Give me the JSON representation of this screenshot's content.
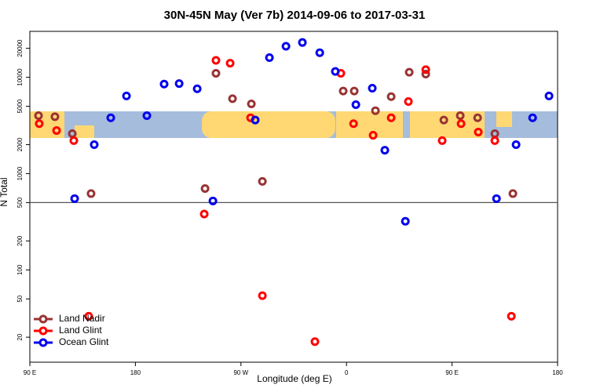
{
  "chart_data": {
    "type": "scatter",
    "title": "30N-45N May (Ver 7b)   2014-09-06 to 2017-03-31",
    "x_label": "Longitude (deg E)",
    "y_label": "N Total",
    "log_y": true,
    "hline": 500,
    "legend": "lower left",
    "xlim": [
      90,
      540
    ],
    "xticks": [
      {
        "value": 90,
        "label": "90 E"
      },
      180,
      {
        "value": 270,
        "label": "90 W"
      },
      {
        "value": 360,
        "label": "0"
      },
      {
        "value": 450,
        "label": "90 E"
      },
      {
        "value": 540,
        "label": "180"
      }
    ],
    "ylim": [
      11,
      30000
    ],
    "yticks": [
      20,
      50,
      100,
      200,
      500,
      1000,
      2000,
      5000,
      10000,
      20000
    ],
    "series": [
      {
        "name": "Land Nadir",
        "color": "#993333",
        "x": [
          97.4,
          111.4,
          126.2,
          142.2,
          239.4,
          248.7,
          262.8,
          278.9,
          288.3,
          357.2,
          366.6,
          384.7,
          398.1,
          413.5,
          427.6,
          443,
          457,
          471.8,
          486.5,
          501.9
        ],
        "values": [
          4000,
          3900,
          2600,
          620,
          700,
          11000,
          6000,
          5300,
          830,
          7200,
          7200,
          4500,
          6300,
          11300,
          10800,
          3600,
          4000,
          3800,
          2600,
          620
        ]
      },
      {
        "name": "Land Glint",
        "color": "#ff0000",
        "x": [
          98,
          112.8,
          127.5,
          140.2,
          238.7,
          248.7,
          260.8,
          278.2,
          288.3,
          333.1,
          355.2,
          366,
          382.7,
          398.1,
          412.8,
          427.6,
          441.6,
          457.7,
          472.4,
          486.5,
          500.6
        ],
        "values": [
          3300,
          2800,
          2200,
          33,
          380,
          15000,
          14000,
          3800,
          54,
          18,
          11000,
          3300,
          2500,
          3800,
          5600,
          12000,
          2200,
          3300,
          2700,
          2200,
          33
        ]
      },
      {
        "name": "Ocean Glint",
        "color": "#0000ee",
        "x": [
          128.2,
          144.9,
          159,
          172.4,
          189.8,
          204.5,
          217.3,
          232.7,
          246.1,
          282.2,
          294.3,
          308.4,
          322.4,
          337.2,
          350.5,
          368,
          382,
          392.7,
          410.2,
          487.9,
          504.6,
          518.7,
          532.7
        ],
        "values": [
          550,
          2000,
          3800,
          6400,
          4000,
          8500,
          8600,
          7600,
          520,
          3600,
          16000,
          21000,
          23000,
          18000,
          11500,
          5200,
          7700,
          1750,
          320,
          550,
          2000,
          3800,
          6400
        ]
      }
    ]
  }
}
